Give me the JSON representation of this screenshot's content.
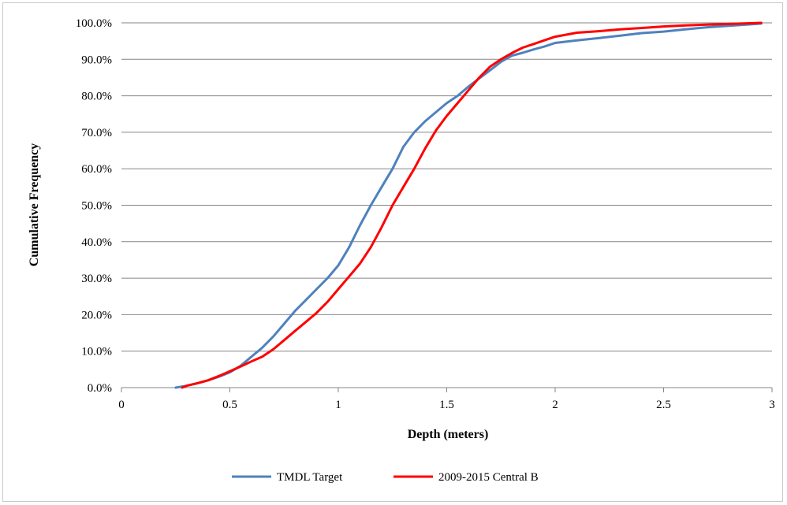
{
  "chart_data": {
    "type": "line",
    "title": "",
    "xlabel": "Depth (meters)",
    "ylabel": "Cumulative Frequency",
    "xlim": [
      0,
      3
    ],
    "ylim": [
      0,
      1
    ],
    "x_ticks": [
      0,
      0.5,
      1,
      1.5,
      2,
      2.5,
      3
    ],
    "x_tick_labels": [
      "0",
      "0.5",
      "1",
      "1.5",
      "2",
      "2.5",
      "3"
    ],
    "y_ticks": [
      0,
      0.1,
      0.2,
      0.3,
      0.4,
      0.5,
      0.6,
      0.7,
      0.8,
      0.9,
      1.0
    ],
    "y_tick_labels": [
      "0.0%",
      "10.0%",
      "20.0%",
      "30.0%",
      "40.0%",
      "50.0%",
      "60.0%",
      "70.0%",
      "80.0%",
      "90.0%",
      "100.0%"
    ],
    "grid": "horizontal",
    "legend_position": "bottom",
    "series": [
      {
        "name": "TMDL Target",
        "color": "#4f81bd",
        "x": [
          0.25,
          0.3,
          0.35,
          0.4,
          0.45,
          0.5,
          0.55,
          0.6,
          0.65,
          0.7,
          0.75,
          0.8,
          0.85,
          0.9,
          0.95,
          1.0,
          1.05,
          1.1,
          1.15,
          1.2,
          1.25,
          1.3,
          1.35,
          1.4,
          1.45,
          1.5,
          1.55,
          1.6,
          1.65,
          1.7,
          1.75,
          1.8,
          1.85,
          1.9,
          1.95,
          2.0,
          2.1,
          2.2,
          2.3,
          2.4,
          2.5,
          2.6,
          2.7,
          2.8,
          2.9,
          2.95
        ],
        "y": [
          0.0,
          0.005,
          0.012,
          0.02,
          0.03,
          0.042,
          0.06,
          0.085,
          0.11,
          0.14,
          0.175,
          0.21,
          0.24,
          0.27,
          0.3,
          0.335,
          0.385,
          0.445,
          0.5,
          0.55,
          0.6,
          0.66,
          0.7,
          0.73,
          0.755,
          0.78,
          0.8,
          0.825,
          0.848,
          0.87,
          0.893,
          0.91,
          0.918,
          0.927,
          0.935,
          0.945,
          0.952,
          0.958,
          0.965,
          0.972,
          0.976,
          0.982,
          0.988,
          0.992,
          0.996,
          0.998
        ]
      },
      {
        "name": "2009-2015 Central B",
        "color": "#ff0000",
        "x": [
          0.28,
          0.3,
          0.35,
          0.4,
          0.45,
          0.5,
          0.55,
          0.6,
          0.65,
          0.7,
          0.75,
          0.8,
          0.85,
          0.9,
          0.95,
          1.0,
          1.05,
          1.1,
          1.15,
          1.2,
          1.25,
          1.3,
          1.35,
          1.4,
          1.45,
          1.5,
          1.55,
          1.6,
          1.65,
          1.7,
          1.75,
          1.8,
          1.85,
          1.9,
          1.95,
          2.0,
          2.1,
          2.2,
          2.3,
          2.4,
          2.5,
          2.6,
          2.7,
          2.8,
          2.9,
          2.95
        ],
        "y": [
          0.0,
          0.005,
          0.012,
          0.02,
          0.032,
          0.045,
          0.058,
          0.072,
          0.085,
          0.105,
          0.13,
          0.155,
          0.18,
          0.205,
          0.235,
          0.27,
          0.305,
          0.34,
          0.385,
          0.44,
          0.5,
          0.55,
          0.6,
          0.655,
          0.705,
          0.745,
          0.78,
          0.815,
          0.85,
          0.88,
          0.9,
          0.917,
          0.932,
          0.942,
          0.952,
          0.962,
          0.973,
          0.977,
          0.982,
          0.986,
          0.99,
          0.993,
          0.995,
          0.997,
          0.999,
          1.0
        ]
      }
    ]
  }
}
